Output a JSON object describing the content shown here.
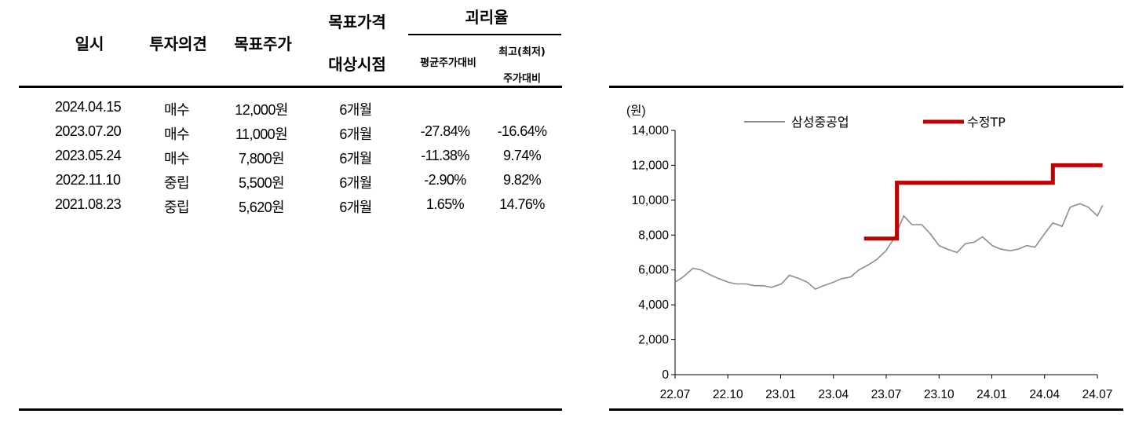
{
  "table": {
    "headers": {
      "date": "일시",
      "opinion": "투자의견",
      "target": "목표주가",
      "horizon_1": "목표가격",
      "horizon_2": "대상시점",
      "gap": "괴리율",
      "gap_avg": "평균주가대비",
      "gap_max_1": "최고(최저)",
      "gap_max_2": "주가대비"
    },
    "rows": [
      {
        "date": "2024.04.15",
        "opinion": "매수",
        "target": "12,000원",
        "horizon": "6개월",
        "gap_avg": "",
        "gap_max": ""
      },
      {
        "date": "2023.07.20",
        "opinion": "매수",
        "target": "11,000원",
        "horizon": "6개월",
        "gap_avg": "-27.84%",
        "gap_max": "-16.64%"
      },
      {
        "date": "2023.05.24",
        "opinion": "매수",
        "target": "7,800원",
        "horizon": "6개월",
        "gap_avg": "-11.38%",
        "gap_max": "9.74%"
      },
      {
        "date": "2022.11.10",
        "opinion": "중립",
        "target": "5,500원",
        "horizon": "6개월",
        "gap_avg": "-2.90%",
        "gap_max": "9.82%"
      },
      {
        "date": "2021.08.23",
        "opinion": "중립",
        "target": "5,620원",
        "horizon": "6개월",
        "gap_avg": "1.65%",
        "gap_max": "14.76%"
      }
    ]
  },
  "chart_data": {
    "type": "line",
    "unit_label": "(원)",
    "x_ticks": [
      "22.07",
      "22.10",
      "23.01",
      "23.04",
      "23.07",
      "23.10",
      "24.01",
      "24.04",
      "24.07"
    ],
    "ylim": [
      0,
      14000
    ],
    "y_ticks": [
      0,
      2000,
      4000,
      6000,
      8000,
      10000,
      12000,
      14000
    ],
    "y_tick_labels": [
      "0",
      "2,000",
      "4,000",
      "6,000",
      "8,000",
      "10,000",
      "12,000",
      "14,000"
    ],
    "legend_position": "top",
    "series": [
      {
        "name": "삼성중공업",
        "color": "#8c8c8c",
        "x": [
          "2022-07-01",
          "2022-07-15",
          "2022-08-01",
          "2022-08-15",
          "2022-09-01",
          "2022-09-15",
          "2022-10-01",
          "2022-10-15",
          "2022-11-01",
          "2022-11-15",
          "2022-12-01",
          "2022-12-15",
          "2023-01-01",
          "2023-01-15",
          "2023-02-01",
          "2023-02-15",
          "2023-03-01",
          "2023-03-15",
          "2023-04-01",
          "2023-04-15",
          "2023-05-01",
          "2023-05-15",
          "2023-06-01",
          "2023-06-15",
          "2023-07-01",
          "2023-07-15",
          "2023-08-01",
          "2023-08-15",
          "2023-09-01",
          "2023-09-15",
          "2023-10-01",
          "2023-10-15",
          "2023-11-01",
          "2023-11-15",
          "2023-12-01",
          "2023-12-15",
          "2024-01-01",
          "2024-01-15",
          "2024-02-01",
          "2024-02-15",
          "2024-03-01",
          "2024-03-15",
          "2024-04-01",
          "2024-04-15",
          "2024-05-01",
          "2024-05-15",
          "2024-06-01",
          "2024-06-15",
          "2024-07-01",
          "2024-07-10"
        ],
        "values": [
          5300,
          5600,
          6100,
          6000,
          5700,
          5500,
          5300,
          5200,
          5200,
          5100,
          5100,
          5000,
          5200,
          5700,
          5500,
          5300,
          4900,
          5100,
          5300,
          5500,
          5600,
          6000,
          6300,
          6600,
          7100,
          7800,
          9100,
          8600,
          8600,
          8100,
          7400,
          7200,
          7000,
          7500,
          7600,
          7900,
          7400,
          7200,
          7100,
          7200,
          7400,
          7300,
          8100,
          8700,
          8500,
          9600,
          9800,
          9600,
          9100,
          9700
        ]
      },
      {
        "name": "수정TP",
        "color": "#c00000",
        "x": [
          "2023-05-24",
          "2023-07-20",
          "2023-07-20",
          "2024-04-15",
          "2024-04-15",
          "2024-07-10"
        ],
        "values": [
          7800,
          7800,
          11000,
          11000,
          12000,
          12000
        ]
      }
    ]
  }
}
